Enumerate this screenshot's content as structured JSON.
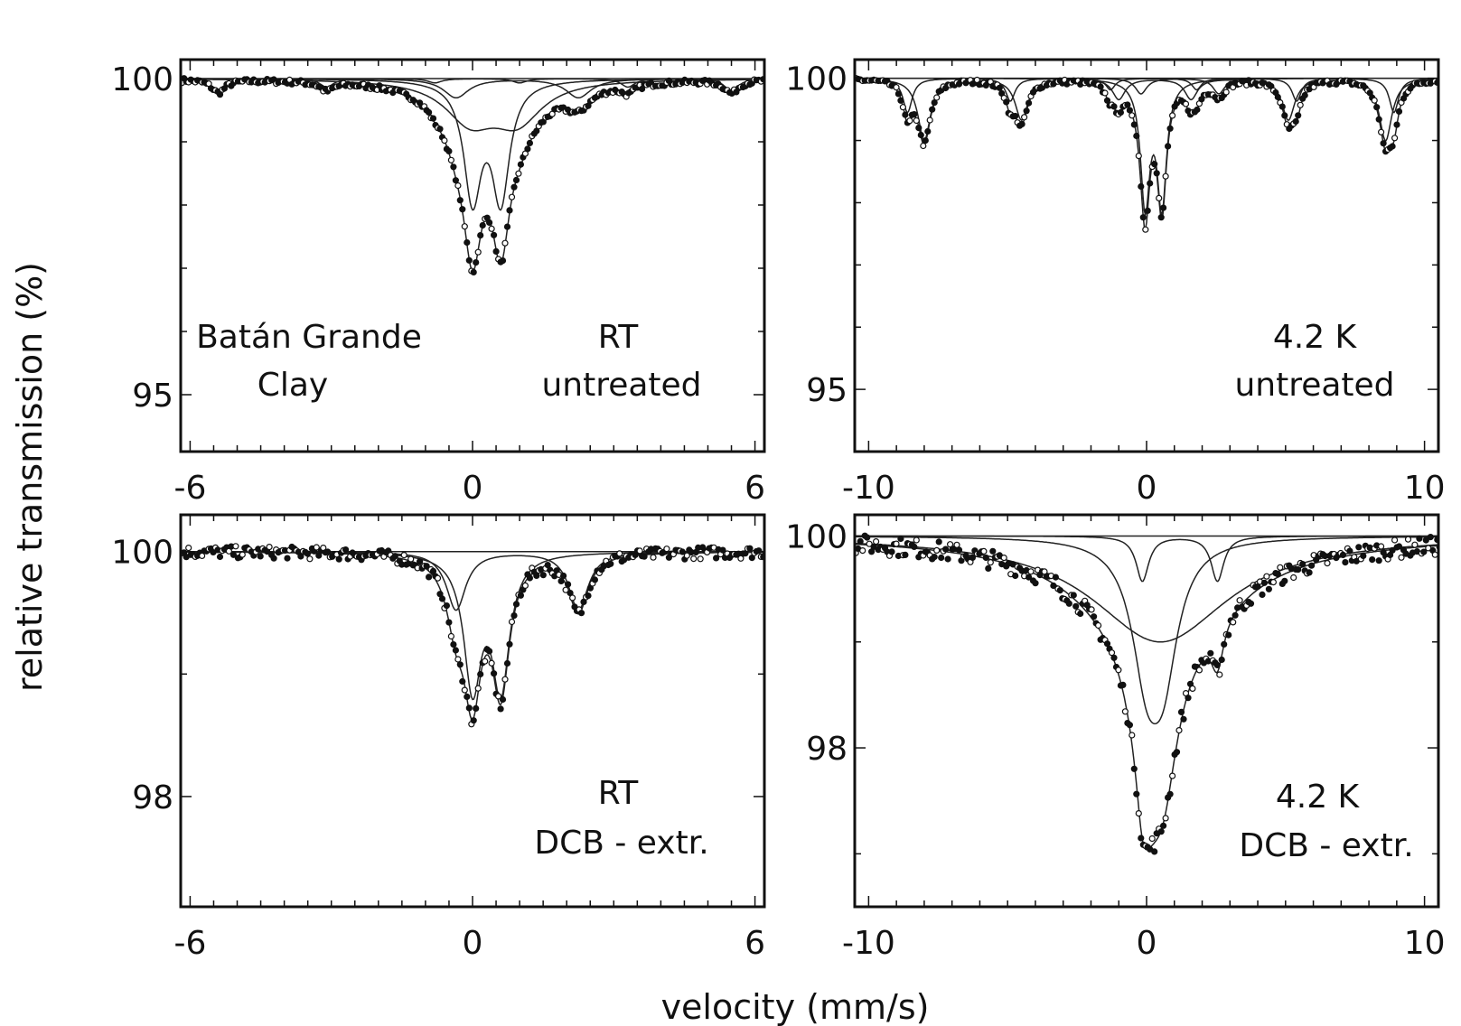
{
  "figure": {
    "ylabel": "relative transmission (%)",
    "xlabel": "velocity (mm/s)"
  },
  "chart_data": [
    {
      "type": "scatter",
      "panel": "top-left",
      "labels": [
        "Batán Grande",
        "Clay",
        "RT",
        "untreated"
      ],
      "xlim": [
        -6.2,
        6.2
      ],
      "ylim": [
        94.1,
        100.3
      ],
      "xticks": [
        -6,
        0,
        6
      ],
      "yticks": [
        100,
        95
      ],
      "components": [
        {
          "kind": "doublet",
          "center": 0.3,
          "split": 0.6,
          "width": 0.45,
          "depth": 3.7
        },
        {
          "kind": "doublet",
          "center": 0.45,
          "split": 1.0,
          "width": 1.3,
          "depth": 1.25
        },
        {
          "kind": "doublet",
          "center": 0.95,
          "split": 2.6,
          "width": 0.65,
          "depth": 0.6
        },
        {
          "kind": "sextet",
          "center": 0.37,
          "lines": [
            -5.4,
            -3.1,
            -0.8,
            1.0,
            3.3,
            5.5
          ],
          "width": 0.35,
          "depth": 0.2
        }
      ]
    },
    {
      "type": "scatter",
      "panel": "top-right",
      "labels": [
        "4.2 K",
        "untreated"
      ],
      "xlim": [
        -10.5,
        10.5
      ],
      "ylim": [
        94.0,
        100.3
      ],
      "xticks": [
        -10,
        0,
        10
      ],
      "yticks": [
        100,
        95
      ],
      "components": [
        {
          "kind": "doublet",
          "center": 0.25,
          "split": 0.6,
          "width": 0.4,
          "depth": 4.0
        },
        {
          "kind": "sextet",
          "center": 0.3,
          "lines": [
            -8.0,
            -4.5,
            -1.0,
            1.6,
            5.1,
            8.6
          ],
          "width": 0.55,
          "depth": 1.0
        },
        {
          "kind": "sextet",
          "center": 0.2,
          "lines": [
            -8.6,
            -4.9,
            -1.3,
            1.8,
            5.4,
            8.9
          ],
          "width": 0.4,
          "depth": 0.55
        },
        {
          "kind": "doublet",
          "center": 1.2,
          "split": 2.8,
          "width": 0.5,
          "depth": 0.5
        }
      ]
    },
    {
      "type": "scatter",
      "panel": "bottom-left",
      "labels": [
        "RT",
        "DCB - extr."
      ],
      "xlim": [
        -6.2,
        6.2
      ],
      "ylim": [
        97.1,
        100.3
      ],
      "xticks": [
        -6,
        0,
        6
      ],
      "yticks": [
        100,
        98
      ],
      "components": [
        {
          "kind": "doublet",
          "center": 0.3,
          "split": 0.6,
          "width": 0.45,
          "depth": 2.15
        },
        {
          "kind": "doublet",
          "center": 0.95,
          "split": 2.6,
          "width": 0.5,
          "depth": 0.95
        }
      ]
    },
    {
      "type": "scatter",
      "panel": "bottom-right",
      "labels": [
        "4.2 K",
        "DCB - extr."
      ],
      "xlim": [
        -10.5,
        10.5
      ],
      "ylim": [
        96.5,
        100.2
      ],
      "xticks": [
        -10,
        0,
        10
      ],
      "yticks": [
        100,
        98
      ],
      "components": [
        {
          "kind": "doublet",
          "center": 0.3,
          "split": 0.6,
          "width": 1.3,
          "depth": 2.15
        },
        {
          "kind": "doublet",
          "center": 1.2,
          "split": 2.7,
          "width": 0.55,
          "depth": 0.85
        },
        {
          "kind": "broad",
          "center": 0.5,
          "width": 6.0,
          "depth": 1.0
        }
      ]
    }
  ]
}
